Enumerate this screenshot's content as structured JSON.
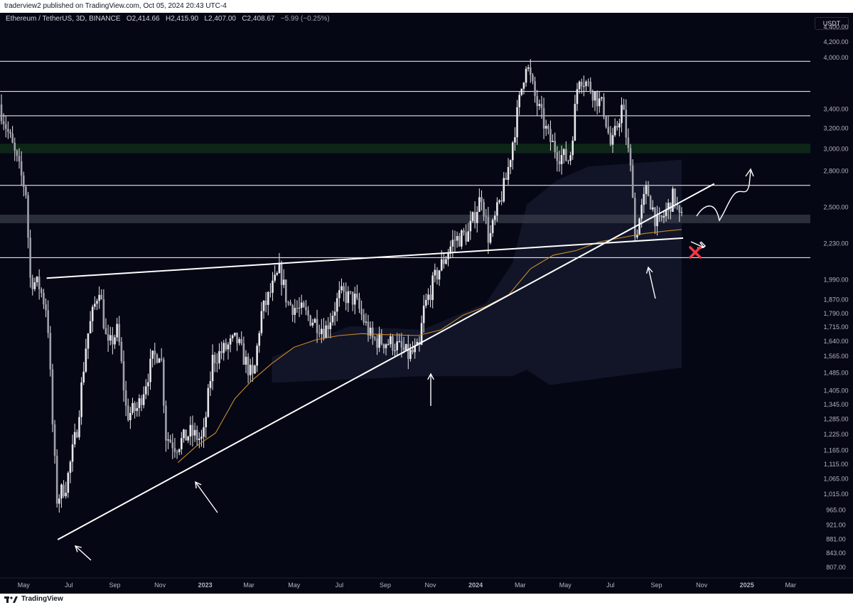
{
  "header": {
    "publish_line": "traderview2 published on TradingView.com, Oct 05, 2024 20:43 UTC-4"
  },
  "legend": {
    "symbol": "Ethereum / TetherUS, 3D, BINANCE",
    "open_label": "O",
    "open": "2,414.66",
    "high_label": "H",
    "high": "2,415.90",
    "low_label": "L",
    "low": "2,407.00",
    "close_label": "C",
    "close": "2,408.67",
    "change": "−5.99 (−0.25%)"
  },
  "currency_button": "USDT",
  "footer": {
    "brand": "TradingView"
  },
  "colors": {
    "background": "#060714",
    "candle": "#e8e8ec",
    "ma_line": "#c98a2c",
    "drawing": "#ffffff",
    "green_zone": "#0e2a18",
    "current_price": "#3b3f4c",
    "cross_mark": "#f23645"
  },
  "chart_data": {
    "type": "candlestick",
    "y_scale": "log",
    "ylim": [
      780,
      4500
    ],
    "price_ticks": [
      "4,400.00",
      "4,200.00",
      "4,000.00",
      "3,400.00",
      "3,200.00",
      "3,000.00",
      "2,800.00",
      "2,500.00",
      "2,230.00",
      "1,990.00",
      "1,870.00",
      "1,790.00",
      "1,715.00",
      "1,640.00",
      "1,565.00",
      "1,485.00",
      "1,405.00",
      "1,345.00",
      "1,285.00",
      "1,225.00",
      "1,165.00",
      "1,115.00",
      "1,065.00",
      "1,015.00",
      "965.00",
      "921.00",
      "881.00",
      "843.00",
      "807.00"
    ],
    "x_ticks": [
      {
        "label": "May",
        "date": "2022-05-01"
      },
      {
        "label": "Jul",
        "date": "2022-07-01"
      },
      {
        "label": "Sep",
        "date": "2022-09-01"
      },
      {
        "label": "Nov",
        "date": "2022-11-01"
      },
      {
        "label": "2023",
        "date": "2023-01-01"
      },
      {
        "label": "Mar",
        "date": "2023-03-01"
      },
      {
        "label": "May",
        "date": "2023-05-01"
      },
      {
        "label": "Jul",
        "date": "2023-07-01"
      },
      {
        "label": "Sep",
        "date": "2023-09-01"
      },
      {
        "label": "Nov",
        "date": "2023-11-01"
      },
      {
        "label": "2024",
        "date": "2024-01-01"
      },
      {
        "label": "Mar",
        "date": "2024-03-01"
      },
      {
        "label": "May",
        "date": "2024-05-01"
      },
      {
        "label": "Jul",
        "date": "2024-07-01"
      },
      {
        "label": "Sep",
        "date": "2024-09-01"
      },
      {
        "label": "Nov",
        "date": "2024-11-01"
      },
      {
        "label": "2025",
        "date": "2025-01-01"
      },
      {
        "label": "Mar",
        "date": "2025-03-01"
      }
    ],
    "levels": [
      {
        "label": "3,950.86",
        "value": 3950.86
      },
      {
        "label": "3,594.59",
        "value": 3594.59
      },
      {
        "label": "3,329.80",
        "value": 3329.8
      },
      {
        "label": "2,676.29",
        "value": 2676.29
      },
      {
        "label": "2,133.04",
        "value": 2133.04
      }
    ],
    "current_price": {
      "label": "2,408.67",
      "value": 2408.67,
      "countdown": "3d 0h"
    },
    "green_zone": [
      2960,
      3050
    ],
    "trendlines": [
      {
        "name": "rising-support",
        "from": {
          "date": "2022-06-16",
          "value": 880
        },
        "to": {
          "date": "2024-11-18",
          "value": 2690
        }
      },
      {
        "name": "flat-resistance",
        "from": {
          "date": "2022-06-01",
          "value": 2000
        },
        "to": {
          "date": "2024-10-07",
          "value": 2268
        }
      }
    ],
    "ma_points": [
      {
        "date": "2022-11-25",
        "value": 1120
      },
      {
        "date": "2022-12-20",
        "value": 1180
      },
      {
        "date": "2023-01-15",
        "value": 1230
      },
      {
        "date": "2023-02-10",
        "value": 1370
      },
      {
        "date": "2023-03-05",
        "value": 1450
      },
      {
        "date": "2023-04-01",
        "value": 1530
      },
      {
        "date": "2023-05-01",
        "value": 1610
      },
      {
        "date": "2023-06-01",
        "value": 1650
      },
      {
        "date": "2023-07-01",
        "value": 1670
      },
      {
        "date": "2023-08-01",
        "value": 1680
      },
      {
        "date": "2023-09-01",
        "value": 1675
      },
      {
        "date": "2023-10-15",
        "value": 1670
      },
      {
        "date": "2023-11-15",
        "value": 1700
      },
      {
        "date": "2023-12-15",
        "value": 1780
      },
      {
        "date": "2024-01-15",
        "value": 1830
      },
      {
        "date": "2024-02-15",
        "value": 1900
      },
      {
        "date": "2024-03-15",
        "value": 2060
      },
      {
        "date": "2024-04-15",
        "value": 2150
      },
      {
        "date": "2024-05-15",
        "value": 2180
      },
      {
        "date": "2024-06-15",
        "value": 2240
      },
      {
        "date": "2024-07-15",
        "value": 2270
      },
      {
        "date": "2024-08-15",
        "value": 2300
      },
      {
        "date": "2024-09-15",
        "value": 2320
      },
      {
        "date": "2024-10-05",
        "value": 2330
      }
    ],
    "price_path": [
      {
        "date": "2022-04-01",
        "value": 3450
      },
      {
        "date": "2022-04-20",
        "value": 3000
      },
      {
        "date": "2022-05-08",
        "value": 2600
      },
      {
        "date": "2022-05-12",
        "value": 2000
      },
      {
        "date": "2022-05-25",
        "value": 1950
      },
      {
        "date": "2022-06-05",
        "value": 1800
      },
      {
        "date": "2022-06-13",
        "value": 1200
      },
      {
        "date": "2022-06-18",
        "value": 1000
      },
      {
        "date": "2022-07-01",
        "value": 1050
      },
      {
        "date": "2022-07-15",
        "value": 1250
      },
      {
        "date": "2022-07-28",
        "value": 1650
      },
      {
        "date": "2022-08-14",
        "value": 1950
      },
      {
        "date": "2022-08-25",
        "value": 1600
      },
      {
        "date": "2022-09-08",
        "value": 1700
      },
      {
        "date": "2022-09-20",
        "value": 1300
      },
      {
        "date": "2022-10-05",
        "value": 1330
      },
      {
        "date": "2022-10-25",
        "value": 1550
      },
      {
        "date": "2022-11-05",
        "value": 1600
      },
      {
        "date": "2022-11-12",
        "value": 1220
      },
      {
        "date": "2022-11-25",
        "value": 1180
      },
      {
        "date": "2022-12-15",
        "value": 1230
      },
      {
        "date": "2023-01-01",
        "value": 1200
      },
      {
        "date": "2023-01-14",
        "value": 1550
      },
      {
        "date": "2023-02-15",
        "value": 1650
      },
      {
        "date": "2023-03-10",
        "value": 1450
      },
      {
        "date": "2023-03-20",
        "value": 1780
      },
      {
        "date": "2023-04-15",
        "value": 2050
      },
      {
        "date": "2023-04-25",
        "value": 1850
      },
      {
        "date": "2023-05-15",
        "value": 1800
      },
      {
        "date": "2023-06-15",
        "value": 1700
      },
      {
        "date": "2023-07-05",
        "value": 1900
      },
      {
        "date": "2023-07-25",
        "value": 1870
      },
      {
        "date": "2023-08-17",
        "value": 1650
      },
      {
        "date": "2023-09-15",
        "value": 1630
      },
      {
        "date": "2023-10-05",
        "value": 1570
      },
      {
        "date": "2023-10-20",
        "value": 1600
      },
      {
        "date": "2023-10-25",
        "value": 1800
      },
      {
        "date": "2023-11-10",
        "value": 2000
      },
      {
        "date": "2023-12-05",
        "value": 2250
      },
      {
        "date": "2023-12-25",
        "value": 2300
      },
      {
        "date": "2024-01-12",
        "value": 2600
      },
      {
        "date": "2024-01-22",
        "value": 2250
      },
      {
        "date": "2024-02-15",
        "value": 2750
      },
      {
        "date": "2024-03-12",
        "value": 3950
      },
      {
        "date": "2024-03-25",
        "value": 3500
      },
      {
        "date": "2024-04-12",
        "value": 3100
      },
      {
        "date": "2024-04-25",
        "value": 2950
      },
      {
        "date": "2024-05-10",
        "value": 2900
      },
      {
        "date": "2024-05-22",
        "value": 3800
      },
      {
        "date": "2024-06-10",
        "value": 3600
      },
      {
        "date": "2024-06-25",
        "value": 3400
      },
      {
        "date": "2024-07-05",
        "value": 3000
      },
      {
        "date": "2024-07-20",
        "value": 3450
      },
      {
        "date": "2024-08-03",
        "value": 2650
      },
      {
        "date": "2024-08-05",
        "value": 2250
      },
      {
        "date": "2024-08-22",
        "value": 2650
      },
      {
        "date": "2024-09-06",
        "value": 2350
      },
      {
        "date": "2024-09-20",
        "value": 2500
      },
      {
        "date": "2024-09-28",
        "value": 2600
      },
      {
        "date": "2024-10-05",
        "value": 2408
      }
    ],
    "annotations": [
      {
        "name": "marker-arrow",
        "kind": "arrow"
      },
      {
        "name": "marker-cross",
        "kind": "x"
      },
      {
        "name": "scenario-path",
        "kind": "freehand"
      }
    ]
  }
}
